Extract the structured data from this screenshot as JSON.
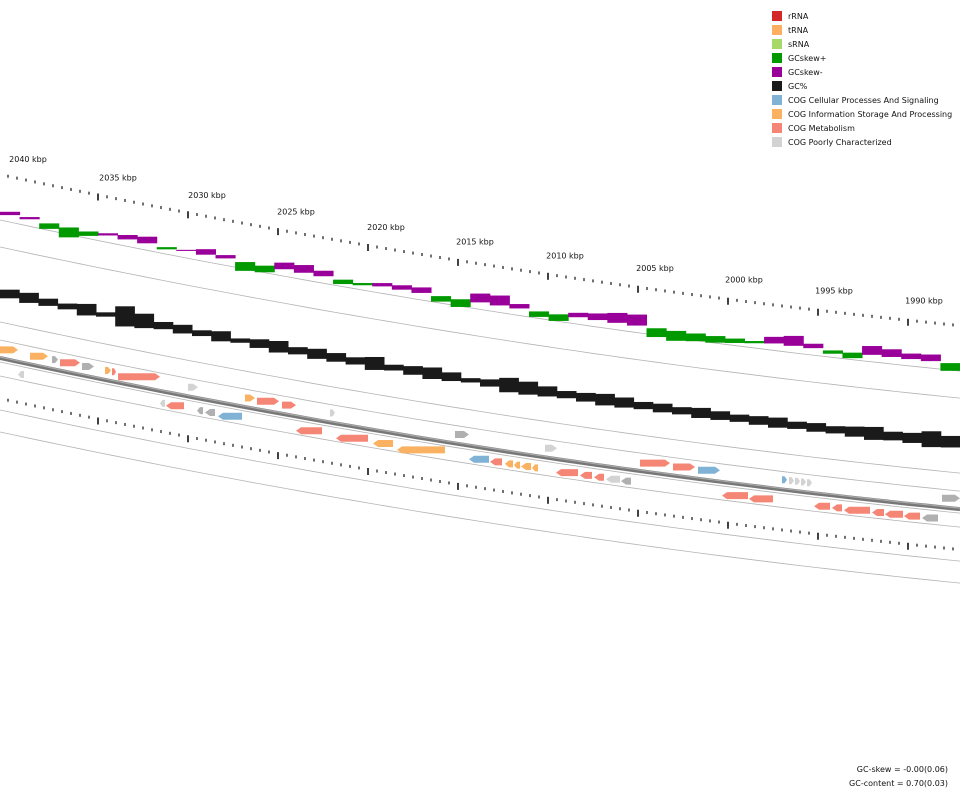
{
  "legend": [
    {
      "label": "rRNA",
      "color": "#d62728"
    },
    {
      "label": "tRNA",
      "color": "#fdae61"
    },
    {
      "label": "sRNA",
      "color": "#a6d96a"
    },
    {
      "label": "GCskew+",
      "color": "#009900"
    },
    {
      "label": "GCskew-",
      "color": "#990099"
    },
    {
      "label": "GC%",
      "color": "#1a1a1a"
    },
    {
      "label": "COG Cellular Processes And Signaling",
      "color": "#7fb2d5"
    },
    {
      "label": "COG Information Storage And Processing",
      "color": "#fbb162"
    },
    {
      "label": "COG Metabolism",
      "color": "#f58676"
    },
    {
      "label": "COG Poorly Characterized",
      "color": "#d3d3d3"
    }
  ],
  "kbp_ticks": [
    "2040 kbp",
    "2035 kbp",
    "2030 kbp",
    "2025 kbp",
    "2020 kbp",
    "2015 kbp",
    "2010 kbp",
    "2005 kbp",
    "2000 kbp",
    "1995 kbp",
    "1990 kbp"
  ],
  "stats": {
    "gc_skew": "GC-skew = -0.00(0.06)",
    "gc_content": "GC-content = 0.70(0.03)"
  },
  "colors": {
    "skew_pos": "#009900",
    "skew_neg": "#990099",
    "gc": "#1a1a1a",
    "cog_cell": "#7fb2d5",
    "cog_info": "#fbb162",
    "cog_metab": "#f58676",
    "cog_poor": "#d3d3d3",
    "gray": "#b0b0b0"
  }
}
